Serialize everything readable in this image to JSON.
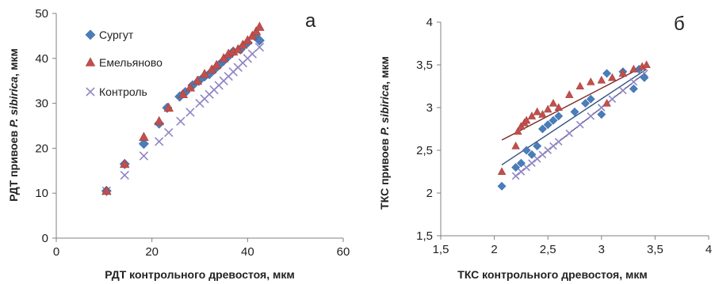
{
  "chart_data": [
    {
      "type": "scatter",
      "panel_label": "а",
      "xlabel": "РДТ контрольного древостоя, мкм",
      "ylabel_pre": "РДТ привоев ",
      "ylabel_species": "P. sibirica",
      "ylabel_post": ", мкм",
      "xlim": [
        0,
        60
      ],
      "ylim": [
        0,
        50
      ],
      "xticks": [
        "0",
        "20",
        "40",
        "60"
      ],
      "yticks": [
        "0",
        "10",
        "20",
        "30",
        "40",
        "50"
      ],
      "grid": false,
      "legend_position": "top-left",
      "series": [
        {
          "name": "Сургут",
          "marker": "diamond",
          "color": "#4a7ebb",
          "x": [
            10.5,
            14.3,
            18.3,
            21.5,
            23.2,
            25.8,
            27.0,
            28.5,
            29.8,
            31.0,
            32.0,
            33.0,
            34.0,
            35.0,
            36.0,
            37.0,
            38.5,
            40.0,
            41.5,
            42.5
          ],
          "y": [
            10.5,
            16.5,
            21.0,
            25.5,
            29.0,
            31.5,
            32.5,
            34.0,
            35.0,
            36.0,
            36.5,
            37.5,
            38.5,
            39.5,
            40.5,
            41.5,
            42.0,
            43.5,
            45.0,
            44.0
          ]
        },
        {
          "name": "Емельяново",
          "marker": "triangle",
          "color": "#c0504d",
          "x": [
            10.5,
            14.3,
            18.3,
            21.5,
            23.5,
            26.5,
            28.0,
            29.5,
            31.0,
            32.5,
            33.5,
            35.0,
            36.0,
            37.0,
            38.0,
            39.0,
            40.0,
            41.0,
            41.8,
            42.5
          ],
          "y": [
            10.5,
            16.5,
            22.5,
            26.0,
            29.0,
            32.0,
            33.5,
            35.0,
            36.5,
            37.5,
            38.5,
            40.0,
            41.0,
            41.5,
            42.0,
            43.0,
            44.0,
            45.0,
            46.0,
            47.0
          ]
        },
        {
          "name": "Контроль",
          "marker": "x",
          "color": "#8f86c4",
          "x": [
            10.5,
            14.3,
            18.3,
            21.5,
            23.5,
            26.0,
            28.0,
            30.0,
            31.0,
            32.0,
            33.0,
            34.0,
            35.0,
            36.0,
            37.0,
            38.0,
            39.0,
            40.0,
            41.0,
            42.5
          ],
          "y": [
            10.5,
            14.0,
            18.3,
            21.5,
            23.5,
            26.0,
            28.0,
            30.0,
            31.0,
            32.0,
            33.0,
            34.0,
            35.0,
            36.0,
            37.0,
            38.0,
            39.0,
            40.0,
            41.0,
            42.5
          ]
        }
      ]
    },
    {
      "type": "scatter",
      "panel_label": "б",
      "xlabel": "ТКС контрольного древостоя, мкм",
      "ylabel_pre": "ТКС привоев ",
      "ylabel_species": "P. sibirica",
      "ylabel_post": ", мкм",
      "xlim": [
        1.5,
        4
      ],
      "ylim": [
        1.5,
        4
      ],
      "xticks": [
        "1,5",
        "2",
        "2,5",
        "3",
        "3,5",
        "4"
      ],
      "yticks": [
        "1,5",
        "2",
        "2,5",
        "3",
        "3,5",
        "4"
      ],
      "grid": false,
      "series": [
        {
          "name": "Сургут",
          "marker": "diamond",
          "color": "#4a7ebb",
          "x": [
            2.07,
            2.2,
            2.25,
            2.3,
            2.35,
            2.4,
            2.45,
            2.5,
            2.55,
            2.6,
            2.75,
            2.85,
            2.9,
            3.0,
            3.05,
            3.2,
            3.3,
            3.35,
            3.4
          ],
          "y": [
            2.08,
            2.3,
            2.35,
            2.5,
            2.45,
            2.55,
            2.75,
            2.8,
            2.85,
            2.9,
            2.95,
            3.05,
            3.1,
            2.92,
            3.4,
            3.42,
            3.22,
            3.45,
            3.35
          ],
          "trend": [
            [
              2.07,
              2.33
            ],
            [
              3.42,
              3.45
            ]
          ]
        },
        {
          "name": "Емельяново",
          "marker": "triangle",
          "color": "#c0504d",
          "x": [
            2.07,
            2.2,
            2.22,
            2.25,
            2.28,
            2.3,
            2.35,
            2.4,
            2.45,
            2.5,
            2.55,
            2.6,
            2.7,
            2.8,
            2.9,
            3.0,
            3.05,
            3.1,
            3.2,
            3.3,
            3.38,
            3.42
          ],
          "y": [
            2.25,
            2.55,
            2.72,
            2.78,
            2.82,
            2.85,
            2.9,
            2.95,
            2.92,
            2.98,
            3.05,
            3.0,
            3.15,
            3.25,
            3.3,
            3.32,
            3.05,
            3.35,
            3.4,
            3.45,
            3.48,
            3.5
          ],
          "trend": [
            [
              2.07,
              2.62
            ],
            [
              3.42,
              3.5
            ]
          ]
        },
        {
          "name": "Контроль",
          "marker": "x",
          "color": "#8f86c4",
          "x": [
            2.2,
            2.25,
            2.3,
            2.35,
            2.4,
            2.45,
            2.5,
            2.55,
            2.6,
            2.7,
            2.8,
            2.9,
            3.0,
            3.1,
            3.2,
            3.3,
            3.4
          ],
          "y": [
            2.2,
            2.25,
            2.3,
            2.35,
            2.4,
            2.45,
            2.5,
            2.55,
            2.6,
            2.7,
            2.8,
            2.9,
            3.0,
            3.1,
            3.2,
            3.3,
            3.4
          ],
          "trend": [
            [
              2.2,
              2.2
            ],
            [
              3.4,
              3.4
            ]
          ]
        }
      ]
    }
  ]
}
